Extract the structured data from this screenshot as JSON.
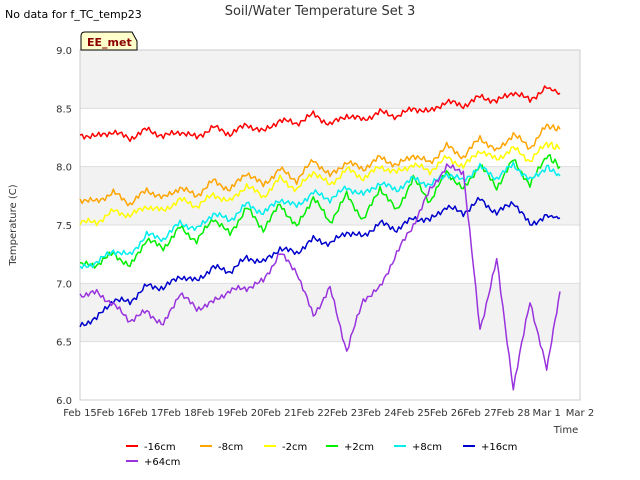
{
  "no_data_note": "No data for f_TC_temp23",
  "badge": {
    "label": "EE_met",
    "fill": "#ffffcc",
    "text_color": "#8b0000"
  },
  "chart_data": {
    "type": "line",
    "title": "Soil/Water Temperature Set 3",
    "xlabel": "Time",
    "ylabel": "Temperature (C)",
    "ylim": [
      6.0,
      9.0
    ],
    "yticks": [
      "6.0",
      "6.5",
      "7.0",
      "7.5",
      "8.0",
      "8.5",
      "9.0"
    ],
    "xlim_days": [
      0,
      15
    ],
    "xticks": [
      "Feb 15",
      "Feb 16",
      "Feb 17",
      "Feb 18",
      "Feb 19",
      "Feb 20",
      "Feb 21",
      "Feb 22",
      "Feb 23",
      "Feb 24",
      "Feb 25",
      "Feb 26",
      "Feb 27",
      "Feb 28",
      "Mar 1",
      "Mar 2"
    ],
    "grid": "alternating horizontal bands",
    "legend_position": "bottom",
    "x_days": [
      0.0,
      0.5,
      1.0,
      1.5,
      2.0,
      2.5,
      3.0,
      3.5,
      4.0,
      4.5,
      5.0,
      5.5,
      6.0,
      6.5,
      7.0,
      7.5,
      8.0,
      8.5,
      9.0,
      9.5,
      10.0,
      10.5,
      11.0,
      11.5,
      12.0,
      12.5,
      13.0,
      13.5,
      14.0,
      14.4
    ],
    "series": [
      {
        "name": "-16cm",
        "color": "#ff0000",
        "values": [
          8.27,
          8.26,
          8.3,
          8.24,
          8.32,
          8.26,
          8.3,
          8.25,
          8.34,
          8.28,
          8.36,
          8.3,
          8.4,
          8.37,
          8.45,
          8.36,
          8.44,
          8.4,
          8.47,
          8.43,
          8.5,
          8.47,
          8.56,
          8.52,
          8.6,
          8.56,
          8.64,
          8.57,
          8.68,
          8.63
        ]
      },
      {
        "name": "-8cm",
        "color": "#ffa500",
        "values": [
          7.72,
          7.7,
          7.78,
          7.68,
          7.8,
          7.73,
          7.82,
          7.75,
          7.88,
          7.8,
          7.95,
          7.84,
          7.98,
          7.88,
          8.06,
          7.92,
          8.04,
          7.98,
          8.08,
          8.01,
          8.1,
          8.03,
          8.18,
          8.08,
          8.25,
          8.13,
          8.28,
          8.16,
          8.35,
          8.32
        ]
      },
      {
        "name": "-2cm",
        "color": "#ffff00",
        "values": [
          7.53,
          7.52,
          7.62,
          7.58,
          7.66,
          7.62,
          7.72,
          7.66,
          7.76,
          7.7,
          7.84,
          7.74,
          7.9,
          7.8,
          7.96,
          7.84,
          7.98,
          7.9,
          8.0,
          7.95,
          8.02,
          7.96,
          8.08,
          8.0,
          8.14,
          8.06,
          8.16,
          8.05,
          8.2,
          8.15
        ]
      },
      {
        "name": "+2cm",
        "color": "#00ee00",
        "values": [
          7.16,
          7.16,
          7.26,
          7.14,
          7.38,
          7.3,
          7.48,
          7.36,
          7.56,
          7.42,
          7.65,
          7.46,
          7.68,
          7.48,
          7.74,
          7.52,
          7.76,
          7.54,
          7.82,
          7.62,
          7.9,
          7.7,
          7.96,
          7.8,
          8.02,
          7.82,
          8.06,
          7.84,
          8.1,
          8.0
        ]
      },
      {
        "name": "+8cm",
        "color": "#00eeee",
        "values": [
          7.13,
          7.18,
          7.28,
          7.24,
          7.42,
          7.38,
          7.52,
          7.46,
          7.6,
          7.54,
          7.68,
          7.6,
          7.72,
          7.66,
          7.78,
          7.72,
          7.82,
          7.76,
          7.86,
          7.8,
          7.9,
          7.84,
          7.94,
          7.88,
          8.0,
          7.9,
          8.02,
          7.88,
          8.0,
          7.92
        ]
      },
      {
        "name": "+16cm",
        "color": "#0000cc",
        "values": [
          6.64,
          6.7,
          6.86,
          6.84,
          6.98,
          6.96,
          7.06,
          7.02,
          7.14,
          7.1,
          7.22,
          7.18,
          7.3,
          7.26,
          7.38,
          7.34,
          7.44,
          7.4,
          7.52,
          7.46,
          7.56,
          7.54,
          7.66,
          7.6,
          7.72,
          7.6,
          7.7,
          7.5,
          7.58,
          7.56
        ]
      },
      {
        "name": "+64cm",
        "color": "#9933dd",
        "values": [
          6.9,
          6.92,
          6.82,
          6.68,
          6.76,
          6.64,
          6.92,
          6.78,
          6.84,
          6.94,
          6.96,
          7.02,
          7.26,
          7.1,
          6.72,
          6.96,
          6.42,
          6.86,
          6.96,
          7.26,
          7.5,
          7.8,
          8.0,
          7.96,
          6.6,
          7.2,
          6.1,
          6.85,
          6.26,
          6.93
        ]
      }
    ]
  }
}
